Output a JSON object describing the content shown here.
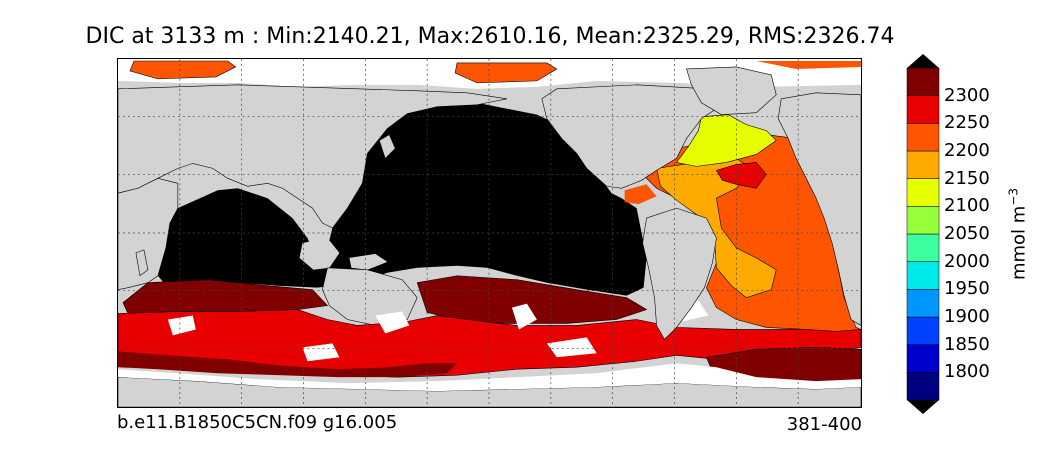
{
  "title": "DIC at 3133 m : Min:2140.21, Max:2610.16, Mean:2325.29, RMS:2326.74",
  "case_label": "b.e11.B1850C5CN.f09 g16.005",
  "years_label": "381-400",
  "units": {
    "base": "mmol m",
    "exponent": "−3"
  },
  "colors": {
    "land": "#d3d3d3",
    "missing": "#ffffff",
    "below_min": "#000000"
  },
  "chart_data": {
    "type": "heatmap",
    "title": "DIC at 3133 m : Min:2140.21, Max:2610.16, Mean:2325.29, RMS:2326.74",
    "variable": "DIC",
    "depth": "3133 m",
    "stats": {
      "min": 2140.21,
      "max": 2610.16,
      "mean": 2325.29,
      "rms": 2326.74
    },
    "colorbar": {
      "ticks": [
        1800,
        1850,
        1900,
        1950,
        2000,
        2050,
        2100,
        2150,
        2200,
        2250,
        2300
      ],
      "levels": [
        1775,
        1825,
        1875,
        1925,
        1975,
        2025,
        2075,
        2125,
        2175,
        2225,
        2275,
        2325
      ],
      "colors": [
        "#000080",
        "#0000cd",
        "#0040ff",
        "#0096ff",
        "#00e8e8",
        "#3cffa0",
        "#96ff3c",
        "#e6ff00",
        "#ffaa00",
        "#ff5500",
        "#e80000",
        "#800000"
      ],
      "extend": "both",
      "under_color": "#000000",
      "over_color": "#000000",
      "label": "mmol m^-3"
    },
    "grid": true,
    "projection": "global lat-lon, 30E to 390E"
  }
}
